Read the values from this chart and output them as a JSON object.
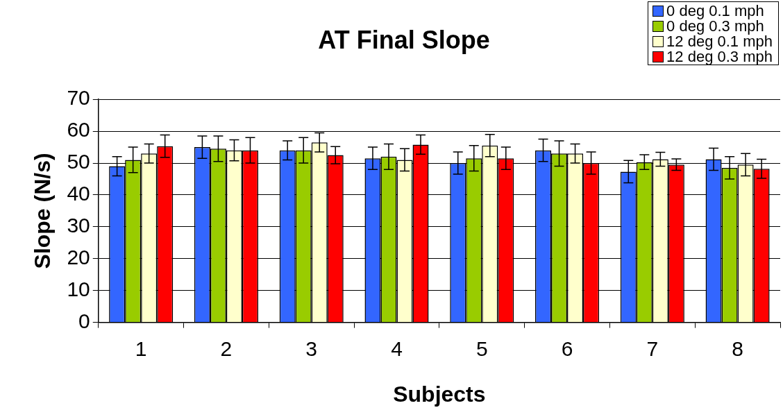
{
  "chart_data": {
    "type": "bar",
    "title": "AT Final Slope",
    "xlabel": "Subjects",
    "ylabel": "Slope (N/s)",
    "categories": [
      "1",
      "2",
      "3",
      "4",
      "5",
      "6",
      "7",
      "8"
    ],
    "series": [
      {
        "name": "0 deg 0.1 mph",
        "color": "#3366ff",
        "values": [
          49,
          55,
          54,
          51.5,
          50,
          54,
          47.3,
          51.2
        ],
        "errors": [
          3,
          3.5,
          3,
          3.5,
          3.5,
          3.5,
          3.5,
          3.5
        ]
      },
      {
        "name": "0 deg 0.3 mph",
        "color": "#99cc00",
        "values": [
          51,
          54.5,
          54,
          52,
          51.5,
          53,
          50.3,
          48.5
        ],
        "errors": [
          4,
          4,
          4,
          4,
          4,
          4,
          2.3,
          3.5
        ]
      },
      {
        "name": "12 deg 0.1 mph",
        "color": "#ffffcc",
        "values": [
          53,
          54,
          56.5,
          51,
          55.5,
          53,
          51.2,
          49.5
        ],
        "errors": [
          3,
          3.3,
          3,
          3.5,
          3.5,
          3,
          2.2,
          3.5
        ]
      },
      {
        "name": "12 deg 0.3 mph",
        "color": "#ff0000",
        "values": [
          55.3,
          54,
          52.5,
          55.8,
          51.5,
          50,
          49.5,
          48.2
        ],
        "errors": [
          3.5,
          4,
          2.7,
          3,
          3.5,
          3.5,
          1.8,
          3
        ]
      }
    ],
    "ylim": [
      0,
      70
    ],
    "yticks": [
      0,
      10,
      20,
      30,
      40,
      50,
      60,
      70
    ],
    "grid": "y",
    "legend": "top right"
  }
}
